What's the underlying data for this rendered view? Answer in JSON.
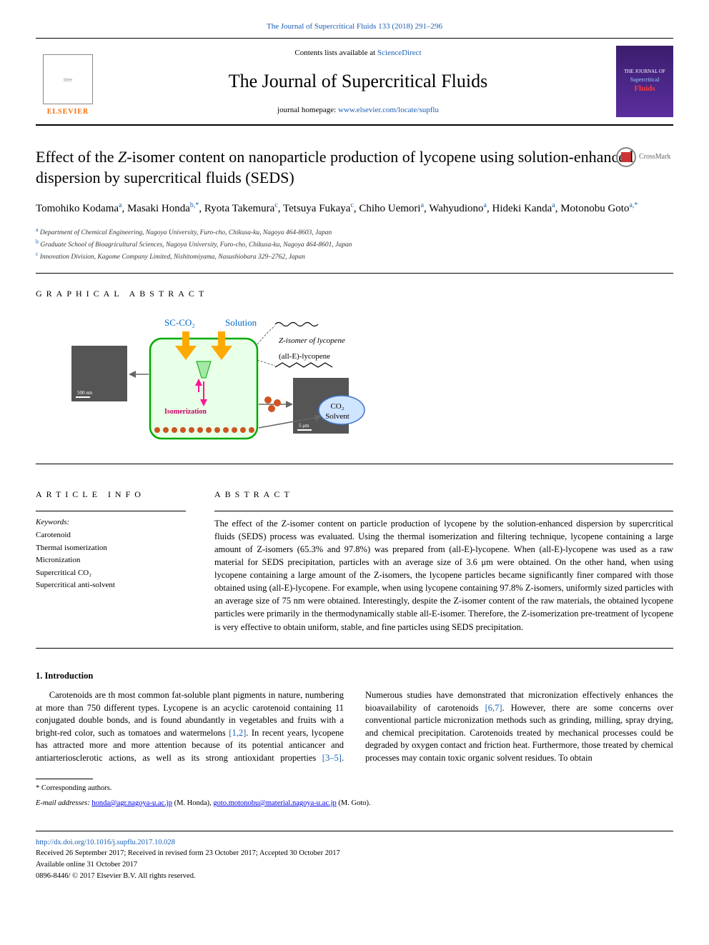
{
  "journal_ref": "The Journal of Supercritical Fluids 133 (2018) 291–296",
  "header": {
    "contents_prefix": "Contents lists available at ",
    "contents_link": "ScienceDirect",
    "journal_title": "The Journal of Supercritical Fluids",
    "homepage_prefix": "journal homepage: ",
    "homepage_url": "www.elsevier.com/locate/supflu",
    "elsevier_label": "ELSEVIER",
    "cover_line1": "THE JOURNAL OF",
    "cover_line2": "Supercritical",
    "cover_line3": "Fluids"
  },
  "crossmark_label": "CrossMark",
  "title": "Effect of the Z-isomer content on nanoparticle production of lycopene using solution-enhanced dispersion by supercritical fluids (SEDS)",
  "authors_html": "Tomohiko Kodama<sup>a</sup>, Masaki Honda<sup>b,*</sup>, Ryota Takemura<sup>c</sup>, Tetsuya Fukaya<sup>c</sup>, Chiho Uemori<sup>a</sup>, Wahyudiono<sup>a</sup>, Hideki Kanda<sup>a</sup>, Motonobu Goto<sup>a,*</sup>",
  "affiliations": [
    {
      "sup": "a",
      "text": " Department of Chemical Engineering, Nagoya University, Furo-cho, Chikusa-ku, Nagoya 464-8603, Japan"
    },
    {
      "sup": "b",
      "text": " Graduate School of Bioagricultural Sciences, Nagoya University, Furo-cho, Chikusa-ku, Nagoya 464-8601, Japan"
    },
    {
      "sup": "c",
      "text": " Innovation Division, Kagome Company Limited, Nishitomiyama, Nasushiobara 329–2762, Japan"
    }
  ],
  "section_ga": "GRAPHICAL ABSTRACT",
  "section_info": "ARTICLE INFO",
  "section_abstract": "ABSTRACT",
  "keywords_label": "Keywords:",
  "keywords": [
    "Carotenoid",
    "Thermal isomerization",
    "Micronization",
    "Supercritical CO₂",
    "Supercritical anti-solvent"
  ],
  "abstract": "The effect of the Z-isomer content on particle production of lycopene by the solution-enhanced dispersion by supercritical fluids (SEDS) process was evaluated. Using the thermal isomerization and filtering technique, lycopene containing a large amount of Z-isomers (65.3% and 97.8%) was prepared from (all-E)-lycopene. When (all-E)-lycopene was used as a raw material for SEDS precipitation, particles with an average size of 3.6 μm were obtained. On the other hand, when using lycopene containing a large amount of the Z-isomers, the lycopene particles became significantly finer compared with those obtained using (all-E)-lycopene. For example, when using lycopene containing 97.8% Z-isomers, uniformly sized particles with an average size of 75 nm were obtained. Interestingly, despite the Z-isomer content of the raw materials, the obtained lycopene particles were primarily in the thermodynamically stable all-E-isomer. Therefore, the Z-isomerization pre-treatment of lycopene is very effective to obtain uniform, stable, and fine particles using SEDS precipitation.",
  "intro_heading": "1. Introduction",
  "intro_p1": "Carotenoids are th most common fat-soluble plant pigments in nature, numbering at more than 750 different types. Lycopene is an acyclic carotenoid containing 11 conjugated double bonds, and is found abundantly in vegetables and fruits with a bright-red color, such as tomatoes and watermelons ",
  "intro_cite1": "[1,2]",
  "intro_p1b": ". In recent years, lycopene has attracted more and more attention because of its potential anticancer and",
  "intro_p2a": "antiarteriosclerotic actions, as well as its strong antioxidant properties ",
  "intro_cite2": "[3–5]",
  "intro_p2b": ". Numerous studies have demonstrated that micronization effectively enhances the bioavailability of carotenoids ",
  "intro_cite3": "[6,7]",
  "intro_p2c": ". However, there are some concerns over conventional particle micronization methods such as grinding, milling, spray drying, and chemical precipitation. Carotenoids treated by mechanical processes could be degraded by oxygen contact and friction heat. Furthermore, those treated by chemical processes may contain toxic organic solvent residues. To obtain",
  "footer": {
    "corr": "* Corresponding authors.",
    "email_label": "E-mail addresses: ",
    "email1": "honda@agr.nagoya-u.ac.jp",
    "email1_name": " (M. Honda), ",
    "email2": "goto.motonobu@material.nagoya-u.ac.jp",
    "email2_name": " (M. Goto).",
    "doi": "http://dx.doi.org/10.1016/j.supflu.2017.10.028",
    "received": "Received 26 September 2017; Received in revised form 23 October 2017; Accepted 30 October 2017",
    "available": "Available online 31 October 2017",
    "copyright": "0896-8446/ © 2017 Elsevier B.V. All rights reserved."
  },
  "ga": {
    "labels": {
      "scco2": "SC-CO₂",
      "solution": "Solution",
      "z_iso": "Z-isomer of lycopene",
      "all_e": "(all-E)-lycopene",
      "isomerization": "Isomerization",
      "co2": "CO₂",
      "solvent": "Solvent",
      "scale_left": "500 nm",
      "scale_right": "5 μm"
    },
    "colors": {
      "vessel_border": "#00aa00",
      "vessel_fill": "#e8ffe8",
      "arrow_in": "#ffaa00",
      "arrow_down": "#ff1493",
      "particles": "#cc5522",
      "large_particles": "#cc5522",
      "bubble_stroke": "#4477cc",
      "bubble_fill": "#cfe4ff",
      "sem_bg": "#555555"
    }
  }
}
